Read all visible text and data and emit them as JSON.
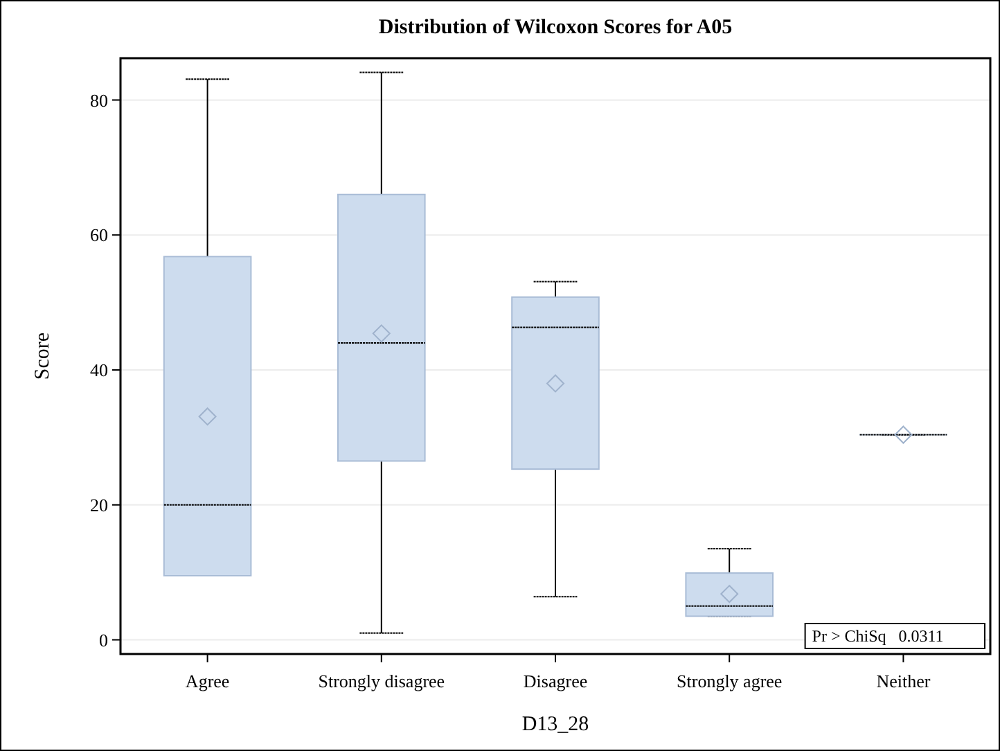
{
  "chart_data": {
    "type": "box",
    "title": "Distribution of Wilcoxon Scores for A05",
    "xlabel": "D13_28",
    "ylabel": "Score",
    "categories": [
      "Agree",
      "Strongly disagree",
      "Disagree",
      "Strongly agree",
      "Neither"
    ],
    "boxes": [
      {
        "low": 9.5,
        "q1": 9.5,
        "median": 20,
        "q3": 56.8,
        "high": 83.1,
        "mean": 33.1
      },
      {
        "low": 1.0,
        "q1": 26.5,
        "median": 44.0,
        "q3": 66.0,
        "high": 84.1,
        "mean": 45.4
      },
      {
        "low": 6.4,
        "q1": 25.3,
        "median": 46.3,
        "q3": 50.8,
        "high": 53.1,
        "mean": 38.0
      },
      {
        "low": 3.5,
        "q1": 3.5,
        "median": 5.0,
        "q3": 9.9,
        "high": 13.5,
        "mean": 6.8
      },
      {
        "low": 30.4,
        "q1": 30.4,
        "median": 30.4,
        "q3": 30.4,
        "high": 30.4,
        "mean": 30.4
      }
    ],
    "color": "#cddcee",
    "ylim": [
      -2.1,
      86.2
    ],
    "yticks": [
      0,
      20,
      40,
      60,
      80
    ],
    "grid": "y",
    "annotations": [
      "Pr > ChiSq   0.0311"
    ]
  }
}
